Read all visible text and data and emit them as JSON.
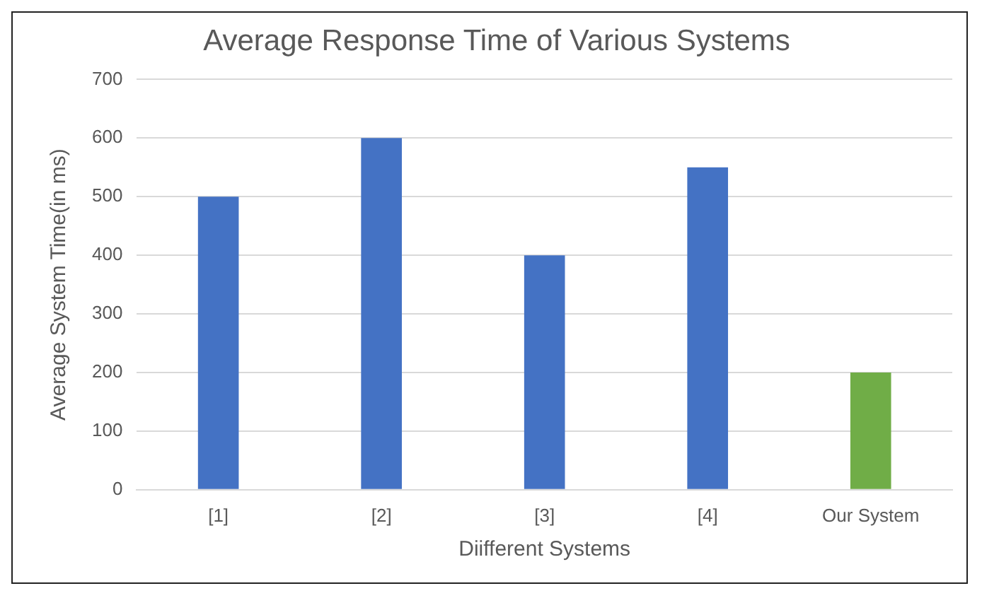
{
  "chart_data": {
    "type": "bar",
    "title": "Average Response Time of Various Systems",
    "xlabel": "Diifferent Systems",
    "ylabel": "Average System Time(in ms)",
    "categories": [
      "[1]",
      "[2]",
      "[3]",
      "[4]",
      "Our System"
    ],
    "values": [
      500,
      600,
      400,
      550,
      200
    ],
    "colors": [
      "#4472c4",
      "#4472c4",
      "#4472c4",
      "#4472c4",
      "#70ad47"
    ],
    "ylim": [
      0,
      700
    ],
    "yticks": [
      0,
      100,
      200,
      300,
      400,
      500,
      600,
      700
    ],
    "grid": "y",
    "legend": false
  }
}
